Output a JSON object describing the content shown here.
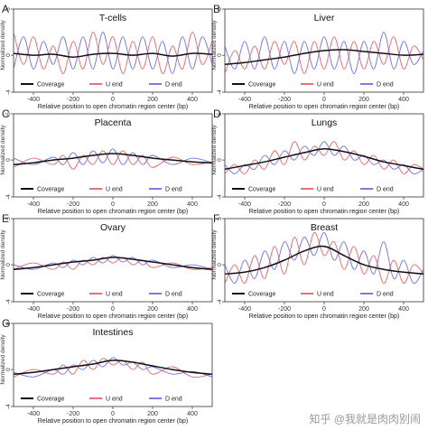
{
  "watermark": "知乎 @我就是肉肉别闹",
  "series_colors": {
    "Coverage": "#111111",
    "U end": "#e0505a",
    "D end": "#5a5ae0"
  },
  "chart_data": [
    {
      "panel": "A",
      "type": "line",
      "title": "T-cells",
      "xlabel": "Relative position to open chromatin region center (bp)",
      "ylabel": "Normalized density",
      "xlim": [
        -500,
        500
      ],
      "ylim": [
        -4,
        5
      ],
      "xticks": [
        -400,
        -200,
        0,
        200,
        400
      ],
      "yticks": [
        -4,
        0,
        5
      ],
      "legend": [
        "Coverage",
        "U end",
        "D end"
      ],
      "series": [
        {
          "name": "Coverage",
          "x": [
            -500,
            -400,
            -300,
            -200,
            -100,
            0,
            100,
            200,
            300,
            400,
            500
          ],
          "values": [
            0.2,
            0.0,
            0.1,
            -0.2,
            0.1,
            0.2,
            0.0,
            0.2,
            -0.1,
            0.2,
            0.1
          ]
        },
        {
          "name": "U end",
          "x": [
            -500,
            -450,
            -400,
            -350,
            -300,
            -250,
            -200,
            -150,
            -100,
            -50,
            0,
            50,
            100,
            150,
            200,
            250,
            300,
            350,
            400,
            450,
            500
          ],
          "values": [
            2.5,
            -1.0,
            2.0,
            -1.5,
            1.0,
            -2.0,
            1.5,
            -1.5,
            2.5,
            -1.0,
            2.0,
            -2.0,
            1.5,
            -1.5,
            2.0,
            -2.0,
            1.0,
            -1.5,
            2.5,
            -1.0,
            1.5
          ]
        },
        {
          "name": "D end",
          "x": [
            -500,
            -450,
            -400,
            -350,
            -300,
            -250,
            -200,
            -150,
            -100,
            -50,
            0,
            50,
            100,
            150,
            200,
            250,
            300,
            350,
            400,
            450,
            500
          ],
          "values": [
            -1.5,
            2.0,
            -1.5,
            1.5,
            -1.0,
            2.0,
            -1.5,
            2.0,
            -1.5,
            2.5,
            -1.5,
            2.0,
            -1.5,
            2.0,
            -1.5,
            1.5,
            -2.0,
            2.0,
            -1.5,
            2.0,
            -1.0
          ]
        }
      ]
    },
    {
      "panel": "B",
      "type": "line",
      "title": "Liver",
      "xlabel": "Relative position to open chromatin region center (bp)",
      "ylabel": "Normalized density",
      "xlim": [
        -500,
        500
      ],
      "ylim": [
        -4,
        5
      ],
      "xticks": [
        -400,
        -200,
        0,
        200,
        400
      ],
      "yticks": [
        -4,
        0,
        5
      ],
      "legend": [
        "Coverage",
        "U end",
        "D end"
      ],
      "series": [
        {
          "name": "Coverage",
          "x": [
            -500,
            -400,
            -300,
            -200,
            -100,
            0,
            100,
            200,
            300,
            400,
            500
          ],
          "values": [
            -1.0,
            -0.8,
            -0.5,
            -0.2,
            0.2,
            0.5,
            0.6,
            0.4,
            0.2,
            0.0,
            0.1
          ]
        },
        {
          "name": "U end",
          "x": [
            -500,
            -450,
            -400,
            -350,
            -300,
            -250,
            -200,
            -150,
            -100,
            -50,
            0,
            50,
            100,
            150,
            200,
            250,
            300,
            350,
            400,
            450,
            500
          ],
          "values": [
            -2.0,
            0.5,
            -1.5,
            1.0,
            -1.5,
            1.5,
            -1.0,
            1.5,
            -2.0,
            1.5,
            -1.5,
            2.0,
            -1.5,
            1.5,
            -1.5,
            1.5,
            -1.0,
            2.0,
            -1.5,
            1.0,
            -0.5
          ]
        },
        {
          "name": "D end",
          "x": [
            -500,
            -450,
            -400,
            -350,
            -300,
            -250,
            -200,
            -150,
            -100,
            -50,
            0,
            50,
            100,
            150,
            200,
            250,
            300,
            350,
            400,
            450,
            500
          ],
          "values": [
            1.0,
            -1.5,
            1.5,
            -1.5,
            2.0,
            -1.5,
            1.5,
            -2.0,
            1.5,
            -1.5,
            2.0,
            -1.5,
            1.5,
            -2.0,
            1.5,
            -1.5,
            2.5,
            -1.5,
            1.5,
            -1.0,
            0.5
          ]
        }
      ]
    },
    {
      "panel": "C",
      "type": "line",
      "title": "Placenta",
      "xlabel": "Relative position to open chromatin region center (bp)",
      "ylabel": "Normalized density",
      "xlim": [
        -500,
        500
      ],
      "ylim": [
        -4,
        5
      ],
      "xticks": [
        -400,
        -200,
        0,
        200,
        400
      ],
      "yticks": [
        -4,
        0,
        5
      ],
      "legend": [
        "Coverage",
        "U end",
        "D end"
      ],
      "series": [
        {
          "name": "Coverage",
          "x": [
            -500,
            -400,
            -300,
            -200,
            -100,
            0,
            100,
            200,
            300,
            400,
            500
          ],
          "values": [
            -0.5,
            -0.3,
            0.0,
            0.2,
            0.5,
            0.7,
            0.5,
            0.2,
            0.0,
            -0.2,
            -0.3
          ]
        },
        {
          "name": "U end",
          "x": [
            -500,
            -400,
            -300,
            -250,
            -200,
            -150,
            -100,
            -50,
            0,
            50,
            100,
            150,
            200,
            300,
            400,
            500
          ],
          "values": [
            -0.8,
            0.2,
            -0.5,
            0.5,
            -1.0,
            0.5,
            -0.5,
            1.0,
            -0.5,
            1.0,
            -0.5,
            0.5,
            -0.8,
            0.3,
            -0.5,
            -0.2
          ]
        },
        {
          "name": "D end",
          "x": [
            -500,
            -400,
            -300,
            -250,
            -200,
            -150,
            -100,
            -50,
            0,
            50,
            100,
            150,
            200,
            300,
            400,
            500
          ],
          "values": [
            0.2,
            -0.5,
            0.3,
            -0.5,
            0.8,
            -0.5,
            1.0,
            -0.3,
            1.2,
            -0.5,
            0.8,
            -0.5,
            0.5,
            -0.5,
            0.2,
            -0.3
          ]
        }
      ]
    },
    {
      "panel": "D",
      "type": "line",
      "title": "Lungs",
      "xlabel": "Relative position to open chromatin region center (bp)",
      "ylabel": "Normalized density",
      "xlim": [
        -500,
        500
      ],
      "ylim": [
        -4,
        5
      ],
      "xticks": [
        -400,
        -200,
        0,
        200,
        400
      ],
      "yticks": [
        -4,
        0,
        5
      ],
      "legend": [
        "Coverage",
        "U end",
        "D end"
      ],
      "series": [
        {
          "name": "Coverage",
          "x": [
            -500,
            -400,
            -300,
            -200,
            -100,
            0,
            100,
            200,
            300,
            400,
            500
          ],
          "values": [
            -1.0,
            -0.6,
            -0.2,
            0.3,
            0.8,
            1.2,
            0.9,
            0.4,
            -0.2,
            -0.6,
            -1.0
          ]
        },
        {
          "name": "U end",
          "x": [
            -500,
            -450,
            -400,
            -350,
            -300,
            -250,
            -200,
            -150,
            -100,
            -50,
            0,
            50,
            100,
            150,
            200,
            250,
            300,
            350,
            400,
            450,
            500
          ],
          "values": [
            -1.5,
            -0.5,
            -1.5,
            0.0,
            -1.0,
            1.0,
            -0.5,
            2.0,
            0.0,
            1.5,
            0.5,
            2.0,
            0.0,
            1.0,
            -0.5,
            0.5,
            -1.0,
            0.0,
            -1.5,
            -0.5,
            -1.0
          ]
        },
        {
          "name": "D end",
          "x": [
            -500,
            -450,
            -400,
            -350,
            -300,
            -250,
            -200,
            -150,
            -100,
            -50,
            0,
            50,
            100,
            150,
            200,
            250,
            300,
            350,
            400,
            450,
            500
          ],
          "values": [
            -0.5,
            -1.5,
            -0.5,
            -1.0,
            0.5,
            -0.5,
            1.0,
            0.0,
            1.5,
            0.5,
            2.0,
            0.5,
            1.5,
            0.0,
            0.5,
            -0.5,
            0.0,
            -1.0,
            -0.5,
            -1.5,
            -1.0
          ]
        }
      ]
    },
    {
      "panel": "E",
      "type": "line",
      "title": "Ovary",
      "xlabel": "Relative position to open chromatin region center (bp)",
      "ylabel": "Normalized density",
      "xlim": [
        -500,
        500
      ],
      "ylim": [
        -4,
        5
      ],
      "xticks": [
        -400,
        -200,
        0,
        200,
        400
      ],
      "yticks": [
        -4,
        0,
        5
      ],
      "legend": [
        "Coverage",
        "U end",
        "D end"
      ],
      "series": [
        {
          "name": "Coverage",
          "x": [
            -500,
            -400,
            -300,
            -200,
            -100,
            0,
            100,
            200,
            300,
            400,
            500
          ],
          "values": [
            -0.5,
            -0.3,
            0.0,
            0.3,
            0.5,
            0.8,
            0.6,
            0.3,
            0.0,
            -0.3,
            -0.5
          ]
        },
        {
          "name": "U end",
          "x": [
            -500,
            -400,
            -300,
            -250,
            -200,
            -150,
            -100,
            -50,
            0,
            50,
            100,
            150,
            200,
            300,
            400,
            500
          ],
          "values": [
            -0.5,
            0.2,
            -0.5,
            0.3,
            -0.5,
            0.5,
            0.0,
            0.8,
            0.2,
            0.8,
            0.0,
            0.5,
            -0.3,
            0.2,
            -0.5,
            -0.3
          ]
        },
        {
          "name": "D end",
          "x": [
            -500,
            -400,
            -300,
            -250,
            -200,
            -150,
            -100,
            -50,
            0,
            50,
            100,
            150,
            200,
            300,
            400,
            500
          ],
          "values": [
            0.0,
            -0.5,
            0.2,
            -0.3,
            0.5,
            0.0,
            0.8,
            0.2,
            1.0,
            0.3,
            0.8,
            0.0,
            0.5,
            -0.3,
            0.0,
            -0.5
          ]
        }
      ]
    },
    {
      "panel": "F",
      "type": "line",
      "title": "Breast",
      "xlabel": "Relative position to open chromatin region center (bp)",
      "ylabel": "Normalized density",
      "xlim": [
        -500,
        500
      ],
      "ylim": [
        -4,
        5
      ],
      "xticks": [
        -400,
        -200,
        0,
        200,
        400
      ],
      "yticks": [
        -4,
        0,
        5
      ],
      "legend": [
        "Coverage",
        "U end",
        "D end"
      ],
      "series": [
        {
          "name": "Coverage",
          "x": [
            -500,
            -400,
            -300,
            -200,
            -100,
            0,
            100,
            200,
            300,
            400,
            500
          ],
          "values": [
            -1.0,
            -0.8,
            -0.3,
            0.5,
            1.5,
            2.0,
            1.0,
            0.0,
            -0.5,
            -0.8,
            -1.0
          ]
        },
        {
          "name": "U end",
          "x": [
            -500,
            -450,
            -400,
            -350,
            -300,
            -250,
            -200,
            -150,
            -100,
            -50,
            0,
            50,
            100,
            150,
            200,
            250,
            300,
            350,
            400,
            450,
            500
          ],
          "values": [
            -2.0,
            0.0,
            -2.0,
            1.0,
            -1.5,
            2.0,
            -1.0,
            3.0,
            0.0,
            3.5,
            1.0,
            2.5,
            -0.5,
            2.0,
            -1.0,
            1.0,
            -2.0,
            0.5,
            -2.0,
            0.0,
            -1.0
          ]
        },
        {
          "name": "D end",
          "x": [
            -500,
            -450,
            -400,
            -350,
            -300,
            -250,
            -200,
            -150,
            -100,
            -50,
            0,
            50,
            100,
            150,
            200,
            250,
            300,
            350,
            400,
            450,
            500
          ],
          "values": [
            0.0,
            -2.0,
            0.5,
            -1.5,
            1.5,
            -0.5,
            2.5,
            0.5,
            3.0,
            1.0,
            3.5,
            0.5,
            2.5,
            -0.5,
            1.5,
            -1.0,
            2.5,
            -1.5,
            0.5,
            -2.0,
            -0.5
          ]
        }
      ]
    },
    {
      "panel": "G",
      "type": "line",
      "title": "Intestines",
      "xlabel": "Relative position to open chromatin region center (bp)",
      "ylabel": "Normalized density",
      "xlim": [
        -500,
        500
      ],
      "ylim": [
        -4,
        5
      ],
      "xticks": [
        -400,
        -200,
        0,
        200,
        400
      ],
      "yticks": [
        -4,
        0,
        5
      ],
      "legend": [
        "Coverage",
        "U end",
        "D end"
      ],
      "series": [
        {
          "name": "Coverage",
          "x": [
            -500,
            -400,
            -300,
            -200,
            -100,
            0,
            100,
            200,
            300,
            400,
            500
          ],
          "values": [
            -0.5,
            -0.3,
            0.0,
            0.3,
            0.6,
            1.0,
            0.8,
            0.4,
            0.0,
            -0.3,
            -0.5
          ]
        },
        {
          "name": "U end",
          "x": [
            -500,
            -400,
            -300,
            -250,
            -200,
            -150,
            -100,
            -50,
            0,
            50,
            100,
            150,
            200,
            300,
            400,
            500
          ],
          "values": [
            -0.8,
            0.0,
            -0.5,
            0.5,
            -0.5,
            1.0,
            0.0,
            1.2,
            0.5,
            1.0,
            0.0,
            0.8,
            -0.5,
            0.3,
            -0.8,
            -0.5
          ]
        },
        {
          "name": "D end",
          "x": [
            -500,
            -400,
            -300,
            -250,
            -200,
            -150,
            -100,
            -50,
            0,
            50,
            100,
            150,
            200,
            300,
            400,
            500
          ],
          "values": [
            -0.3,
            -0.8,
            0.0,
            -0.5,
            0.5,
            0.0,
            1.0,
            0.3,
            1.3,
            0.5,
            0.8,
            0.0,
            0.3,
            -0.5,
            -0.2,
            -0.8
          ]
        }
      ]
    }
  ]
}
